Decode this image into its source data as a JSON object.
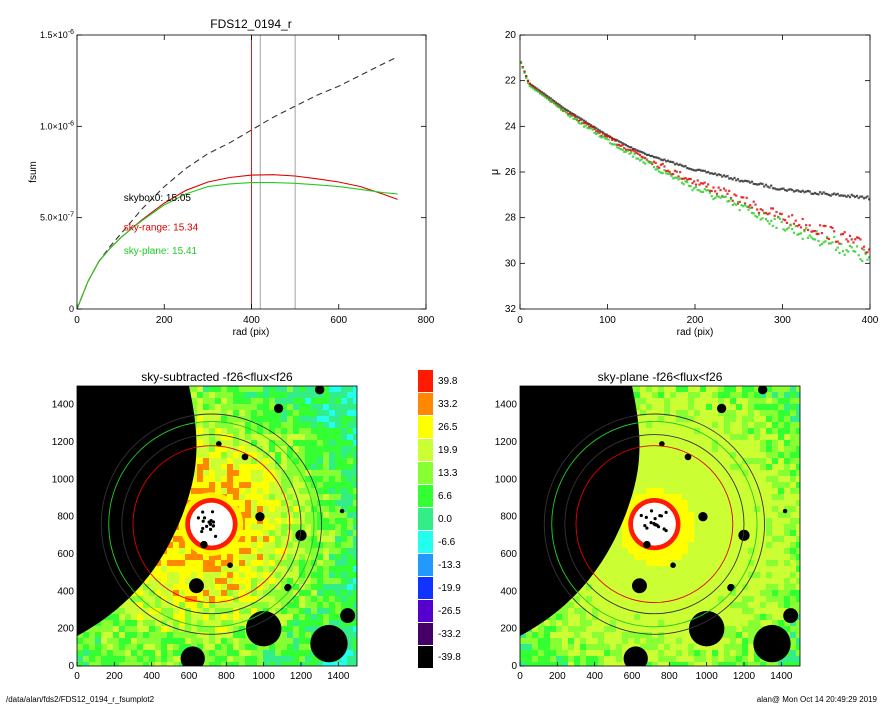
{
  "footer": {
    "path": "/data/alan/fds2/FDS12_0194_r_fsumplot2",
    "stamp": "alan@  Mon Oct 14 20:49:29 2019"
  },
  "chart_data": [
    {
      "id": "fsum",
      "type": "line",
      "title": "FDS12_0194_r",
      "xlabel": "rad (pix)",
      "ylabel": "fsum",
      "xlim": [
        0,
        800
      ],
      "ylim": [
        0,
        1.5e-06
      ],
      "xticks": [
        0,
        200,
        400,
        600,
        800
      ],
      "xtick_labels": [
        "0",
        "200",
        "400",
        "600",
        "800"
      ],
      "yticks": [
        0,
        5e-07,
        1e-06,
        1.5e-06
      ],
      "ytick_labels": [
        {
          "mant": "0",
          "exp": ""
        },
        {
          "mant": "5.0×10",
          "exp": "-7"
        },
        {
          "mant": "1.0×10",
          "exp": "-6"
        },
        {
          "mant": "1.5×10",
          "exp": "-6"
        }
      ],
      "vlines": [
        {
          "x": 400,
          "color": "#e00000"
        },
        {
          "x": 420,
          "color": "#999999"
        },
        {
          "x": 500,
          "color": "#999999"
        }
      ],
      "series": [
        {
          "color": "#333333",
          "dash": true,
          "x": [
            0,
            25,
            50,
            75,
            100,
            125,
            150,
            200,
            250,
            300,
            350,
            400,
            450,
            500,
            550,
            600,
            650,
            700,
            735
          ],
          "y": [
            0,
            1.5e-07,
            2.6e-07,
            3.4e-07,
            4.1e-07,
            4.8e-07,
            5.5e-07,
            6.7e-07,
            7.7e-07,
            8.5e-07,
            9.1e-07,
            9.8e-07,
            1.05e-06,
            1.11e-06,
            1.17e-06,
            1.22e-06,
            1.28e-06,
            1.34e-06,
            1.38e-06
          ]
        },
        {
          "color": "#e00000",
          "dash": false,
          "x": [
            0,
            25,
            50,
            75,
            100,
            125,
            150,
            200,
            250,
            300,
            350,
            400,
            450,
            500,
            550,
            600,
            650,
            700,
            735
          ],
          "y": [
            0,
            1.5e-07,
            2.6e-07,
            3.3e-07,
            3.9e-07,
            4.4e-07,
            4.9e-07,
            5.8e-07,
            6.5e-07,
            6.95e-07,
            7.2e-07,
            7.33e-07,
            7.35e-07,
            7.28e-07,
            7.13e-07,
            6.95e-07,
            6.7e-07,
            6.3e-07,
            6e-07
          ]
        },
        {
          "color": "#22cc22",
          "dash": false,
          "x": [
            0,
            25,
            50,
            75,
            100,
            125,
            150,
            200,
            250,
            300,
            350,
            400,
            450,
            500,
            550,
            600,
            650,
            700,
            735
          ],
          "y": [
            0,
            1.5e-07,
            2.6e-07,
            3.3e-07,
            3.9e-07,
            4.4e-07,
            4.85e-07,
            5.7e-07,
            6.3e-07,
            6.7e-07,
            6.85e-07,
            6.92e-07,
            6.92e-07,
            6.88e-07,
            6.8e-07,
            6.7e-07,
            6.55e-07,
            6.38e-07,
            6.3e-07
          ]
        }
      ],
      "annotations": [
        {
          "text": "skybox0: 15.05",
          "x": 240,
          "y": 5.9e-07,
          "color": "#000000"
        },
        {
          "text": "sky-range: 15.34",
          "x": 240,
          "y": 4.3e-07,
          "color": "#e00000"
        },
        {
          "text": "sky-plane: 15.41",
          "x": 240,
          "y": 3e-07,
          "color": "#22cc22"
        }
      ]
    },
    {
      "id": "mu",
      "type": "scatter",
      "xlabel": "rad (pix)",
      "ylabel": "μ",
      "xlim": [
        0,
        400
      ],
      "ylim": [
        32,
        20
      ],
      "xticks": [
        0,
        100,
        200,
        300,
        400
      ],
      "xtick_labels": [
        "0",
        "100",
        "200",
        "300",
        "400"
      ],
      "yticks": [
        20,
        22,
        24,
        26,
        28,
        30,
        32
      ],
      "ytick_labels": [
        "20",
        "22",
        "24",
        "26",
        "28",
        "30",
        "32"
      ],
      "series": [
        {
          "color": "#333333",
          "x": [
            0,
            10,
            25,
            50,
            75,
            100,
            125,
            150,
            175,
            200,
            225,
            250,
            275,
            300,
            325,
            350,
            375,
            400
          ],
          "y": [
            21.1,
            22.1,
            22.5,
            23.2,
            23.8,
            24.4,
            24.9,
            25.3,
            25.6,
            25.9,
            26.1,
            26.35,
            26.55,
            26.75,
            26.85,
            26.95,
            27.05,
            27.15
          ]
        },
        {
          "color": "#e00000",
          "x": [
            0,
            10,
            25,
            50,
            75,
            100,
            125,
            150,
            175,
            200,
            225,
            250,
            275,
            300,
            325,
            350,
            375,
            400
          ],
          "y": [
            21.1,
            22.1,
            22.6,
            23.3,
            23.9,
            24.5,
            25.0,
            25.5,
            26.0,
            26.4,
            26.8,
            27.2,
            27.6,
            28.0,
            28.3,
            28.6,
            29.0,
            29.4
          ]
        },
        {
          "color": "#22cc22",
          "x": [
            0,
            10,
            25,
            50,
            75,
            100,
            125,
            150,
            175,
            200,
            225,
            250,
            275,
            300,
            325,
            350,
            375,
            400
          ],
          "y": [
            21.1,
            22.2,
            22.6,
            23.35,
            24.0,
            24.6,
            25.15,
            25.7,
            26.2,
            26.7,
            27.1,
            27.5,
            27.9,
            28.3,
            28.7,
            29.0,
            29.4,
            29.8
          ]
        }
      ]
    },
    {
      "id": "map-sub",
      "type": "heatmap",
      "title": "sky-subtracted -f26<flux<f26",
      "xlim": [
        0,
        1500
      ],
      "ylim": [
        0,
        1500
      ],
      "xticks": [
        0,
        200,
        400,
        600,
        800,
        1000,
        1200,
        1400
      ],
      "xtick_labels": [
        "0",
        "200",
        "400",
        "600",
        "800",
        "1000",
        "1200",
        "1400"
      ],
      "yticks": [
        0,
        200,
        400,
        600,
        800,
        1000,
        1200,
        1400
      ],
      "ytick_labels": [
        "0",
        "200",
        "400",
        "600",
        "800",
        "1000",
        "1200",
        "1400"
      ],
      "center": [
        720,
        760
      ],
      "circles": [
        {
          "r": 550,
          "color": "#22cc22"
        },
        {
          "r": 420,
          "color": "#e00000"
        },
        {
          "r": 480,
          "color": "#333333"
        },
        {
          "r": 590,
          "color": "#333333"
        }
      ],
      "background": "noisy"
    },
    {
      "id": "map-plane",
      "type": "heatmap",
      "title": "sky-plane -f26<flux<f26",
      "xlim": [
        0,
        1500
      ],
      "ylim": [
        0,
        1500
      ],
      "xticks": [
        0,
        200,
        400,
        600,
        800,
        1000,
        1200,
        1400
      ],
      "xtick_labels": [
        "0",
        "200",
        "400",
        "600",
        "800",
        "1000",
        "1200",
        "1400"
      ],
      "yticks": [
        0,
        200,
        400,
        600,
        800,
        1000,
        1200,
        1400
      ],
      "ytick_labels": [
        "0",
        "200",
        "400",
        "600",
        "800",
        "1000",
        "1200",
        "1400"
      ],
      "center": [
        720,
        760
      ],
      "circles": [
        {
          "r": 550,
          "color": "#22cc22"
        },
        {
          "r": 420,
          "color": "#e00000"
        },
        {
          "r": 480,
          "color": "#333333"
        },
        {
          "r": 590,
          "color": "#333333"
        }
      ],
      "background": "flat"
    },
    {
      "id": "colorbar",
      "type": "heatmap",
      "labels": [
        "39.8",
        "33.2",
        "26.5",
        "19.9",
        "13.3",
        "6.6",
        "0.0",
        "-6.6",
        "-13.3",
        "-19.9",
        "-26.5",
        "-33.2",
        "-39.8"
      ],
      "colors": [
        "#ff1a00",
        "#ff8800",
        "#ffff00",
        "#ccff33",
        "#88ff33",
        "#33ff33",
        "#33ee88",
        "#22ffee",
        "#2299ff",
        "#1133ff",
        "#5500cc",
        "#440066",
        "#000000"
      ]
    }
  ]
}
